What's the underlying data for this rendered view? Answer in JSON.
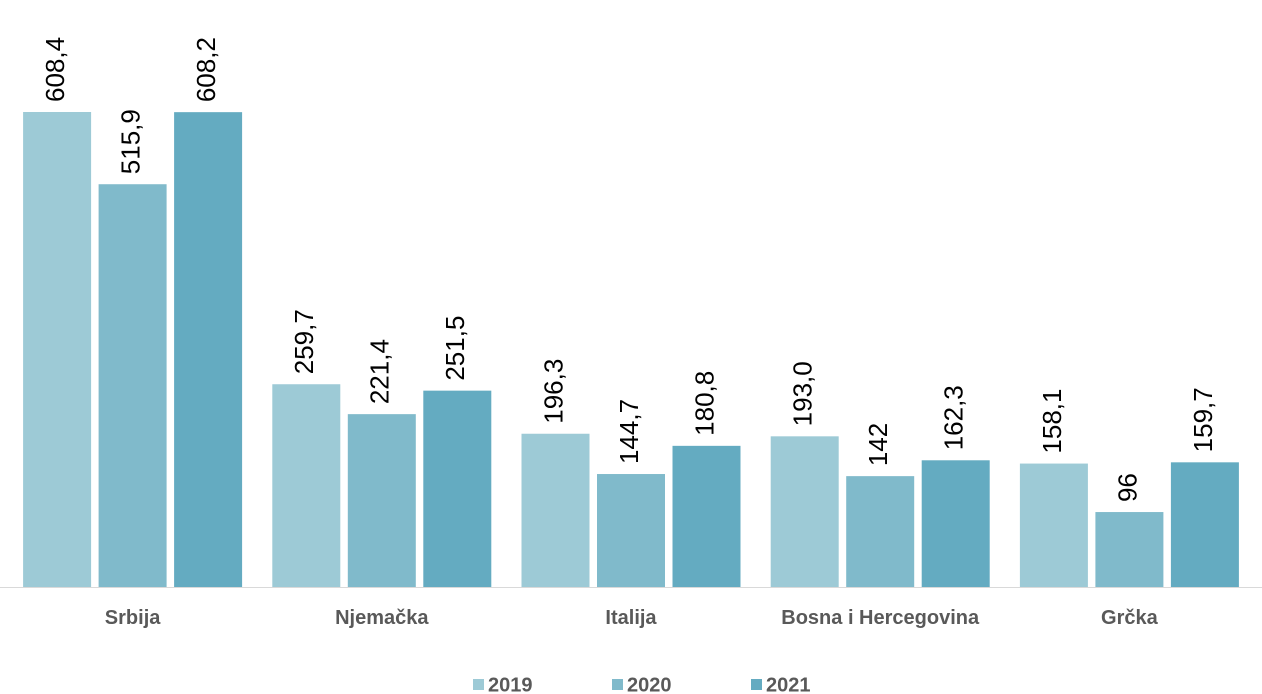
{
  "chart_data": {
    "type": "bar",
    "categories": [
      "Srbija",
      "Njemačka",
      "Italija",
      "Bosna i Hercegovina",
      "Grčka"
    ],
    "series": [
      {
        "name": "2019",
        "color": "#9dcad6",
        "values": [
          608.4,
          259.7,
          196.3,
          193.0,
          158.1
        ],
        "value_labels": [
          "608,4",
          "259,7",
          "196,3",
          "193,0",
          "158,1"
        ]
      },
      {
        "name": "2020",
        "color": "#80bacb",
        "values": [
          515.9,
          221.4,
          144.7,
          142,
          96
        ],
        "value_labels": [
          "515,9",
          "221,4",
          "144,7",
          "142",
          "96"
        ]
      },
      {
        "name": "2021",
        "color": "#64abc1",
        "values": [
          608.2,
          251.5,
          180.8,
          162.3,
          159.7
        ],
        "value_labels": [
          "608,2",
          "251,5",
          "180,8",
          "162,3",
          "159,7"
        ]
      }
    ],
    "legend": "bottom"
  }
}
